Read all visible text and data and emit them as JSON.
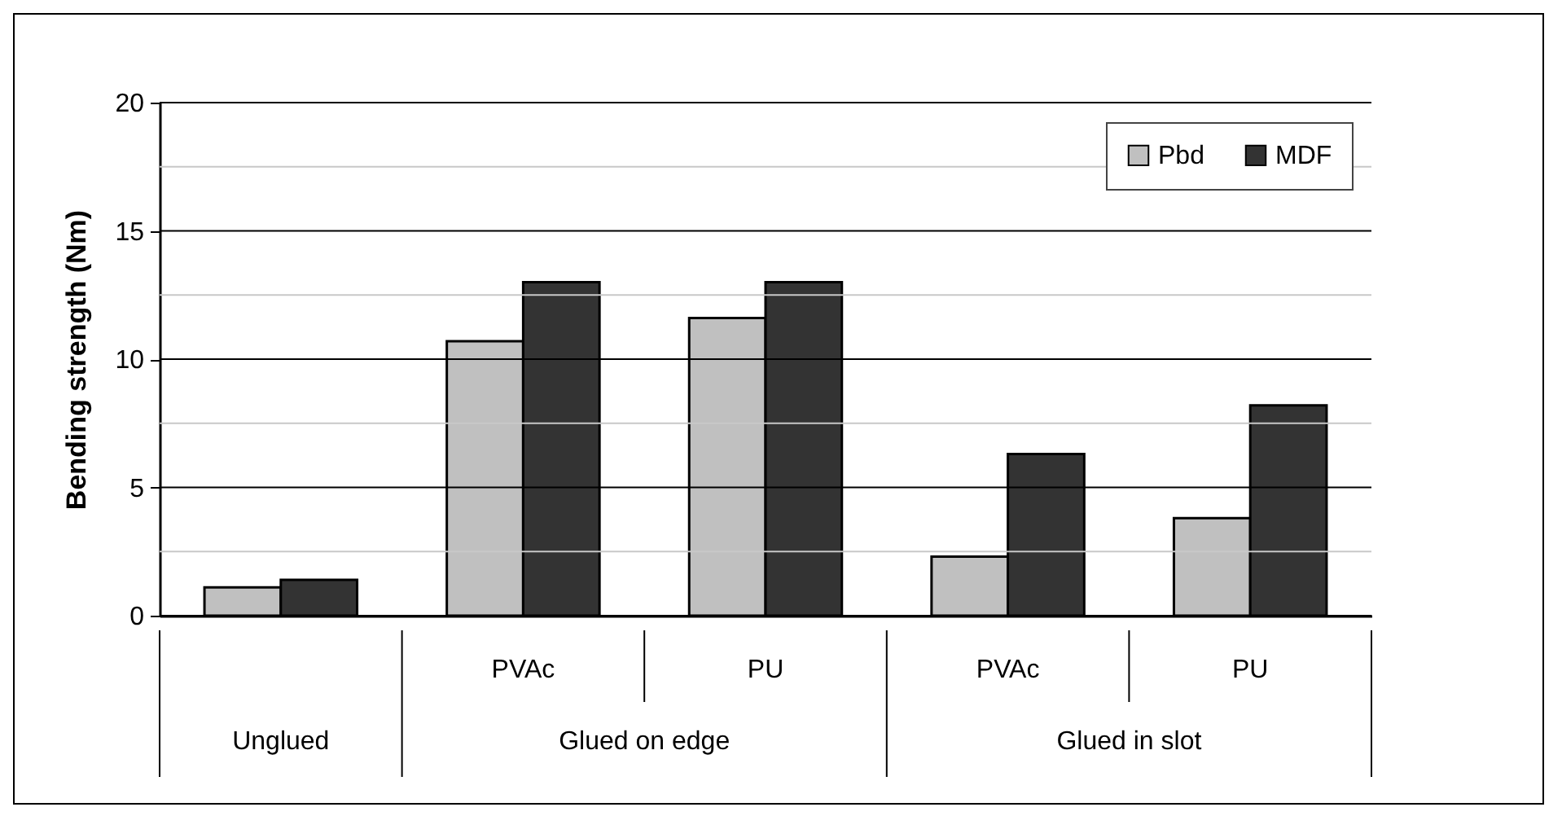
{
  "chart_data": {
    "type": "bar",
    "ylabel": "Bending strength (Nm)",
    "categories": [
      null,
      "PVAc",
      "PU",
      "PVAc",
      "PU"
    ],
    "series": [
      {
        "name": "Pbd",
        "color": "#c0c0c0",
        "values": [
          1.1,
          10.7,
          11.6,
          2.3,
          3.8
        ]
      },
      {
        "name": "MDF",
        "color": "#333333",
        "values": [
          1.4,
          13.0,
          13.0,
          6.3,
          8.2
        ]
      }
    ],
    "ylim": [
      0,
      20
    ],
    "yticks": [
      0,
      {
        "value": 2.5,
        "label": null
      },
      5,
      {
        "value": 7.5,
        "label": null
      },
      10,
      {
        "value": 12.5,
        "label": null
      },
      15,
      {
        "value": 17.5,
        "label": null
      },
      20
    ],
    "grid": true,
    "legend": "top right",
    "annotations": [
      "Unglued",
      "Glued on edge",
      "Glued in slot"
    ]
  }
}
